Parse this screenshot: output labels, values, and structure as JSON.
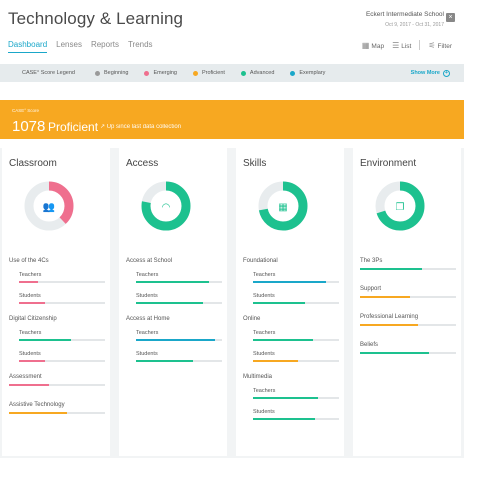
{
  "header": {
    "title": "Technology & Learning",
    "school": "Eckert Intermediate School",
    "dates": "Oct 9, 2017 - Oct 31, 2017",
    "close_glyph": "×",
    "tabs": [
      "Dashboard",
      "Lenses",
      "Reports",
      "Trends"
    ],
    "view_controls": [
      "Map",
      "List",
      "Filter"
    ]
  },
  "legend": {
    "title": "CASE° Score Legend",
    "items": [
      {
        "label": "Beginning",
        "color": "#9a9a9a"
      },
      {
        "label": "Emerging",
        "color": "#ef6f8e"
      },
      {
        "label": "Proficient",
        "color": "#f7a821"
      },
      {
        "label": "Advanced",
        "color": "#1dc18f"
      },
      {
        "label": "Exemplary",
        "color": "#1aa7c9"
      }
    ],
    "more": "Show More",
    "more_glyph": "+"
  },
  "banner": {
    "label": "CASE° Score",
    "score": "1078",
    "level": "Proficient",
    "trend_icon": "arrow-up-right-icon",
    "trend": "Up since last data collection"
  },
  "cards": [
    {
      "title": "Classroom",
      "color": "#ef6f8e",
      "fill": 0.38,
      "icon": "people-icon",
      "glyph": "👥",
      "groups": [
        {
          "label": "Use of the 4Cs",
          "rows": [
            {
              "label": "Teachers",
              "value": 0.22,
              "color": "#ef6f8e"
            },
            {
              "label": "Students",
              "value": 0.3,
              "color": "#ef6f8e"
            }
          ]
        },
        {
          "label": "Digital Citizenship",
          "rows": [
            {
              "label": "Teachers",
              "value": 0.6,
              "color": "#1dc18f"
            },
            {
              "label": "Students",
              "value": 0.3,
              "color": "#ef6f8e"
            }
          ]
        },
        {
          "label": "Assessment",
          "rows": [
            {
              "label": "",
              "value": 0.42,
              "color": "#ef6f8e"
            }
          ]
        },
        {
          "label": "Assistive Technology",
          "rows": [
            {
              "label": "",
              "value": 0.6,
              "color": "#f7a821"
            }
          ]
        }
      ]
    },
    {
      "title": "Access",
      "color": "#1dc18f",
      "fill": 0.78,
      "icon": "wifi-icon",
      "glyph": "◠",
      "groups": [
        {
          "label": "Access at School",
          "rows": [
            {
              "label": "Teachers",
              "value": 0.85,
              "color": "#1dc18f"
            },
            {
              "label": "Students",
              "value": 0.78,
              "color": "#1dc18f"
            }
          ]
        },
        {
          "label": "Access at Home",
          "rows": [
            {
              "label": "Teachers",
              "value": 0.92,
              "color": "#1aa7c9"
            },
            {
              "label": "Students",
              "value": 0.66,
              "color": "#1dc18f"
            }
          ]
        }
      ]
    },
    {
      "title": "Skills",
      "color": "#1dc18f",
      "fill": 0.72,
      "icon": "calculator-icon",
      "glyph": "▦",
      "groups": [
        {
          "label": "Foundational",
          "rows": [
            {
              "label": "Teachers",
              "value": 0.85,
              "color": "#1aa7c9"
            },
            {
              "label": "Students",
              "value": 0.6,
              "color": "#1dc18f"
            }
          ]
        },
        {
          "label": "Online",
          "rows": [
            {
              "label": "Teachers",
              "value": 0.7,
              "color": "#1dc18f"
            },
            {
              "label": "Students",
              "value": 0.52,
              "color": "#f7a821"
            }
          ]
        },
        {
          "label": "Multimedia",
          "rows": [
            {
              "label": "Teachers",
              "value": 0.75,
              "color": "#1dc18f"
            },
            {
              "label": "Students",
              "value": 0.72,
              "color": "#1dc18f"
            }
          ]
        }
      ]
    },
    {
      "title": "Environment",
      "color": "#1dc18f",
      "fill": 0.7,
      "icon": "document-icon",
      "glyph": "❐",
      "groups": [
        {
          "label": "The 3Ps",
          "rows": [
            {
              "label": "",
              "value": 0.65,
              "color": "#1dc18f"
            }
          ]
        },
        {
          "label": "Support",
          "rows": [
            {
              "label": "",
              "value": 0.52,
              "color": "#f7a821"
            }
          ]
        },
        {
          "label": "Professional Learning",
          "rows": [
            {
              "label": "",
              "value": 0.6,
              "color": "#f7a821"
            }
          ]
        },
        {
          "label": "Beliefs",
          "rows": [
            {
              "label": "",
              "value": 0.72,
              "color": "#1dc18f"
            }
          ]
        }
      ]
    }
  ]
}
